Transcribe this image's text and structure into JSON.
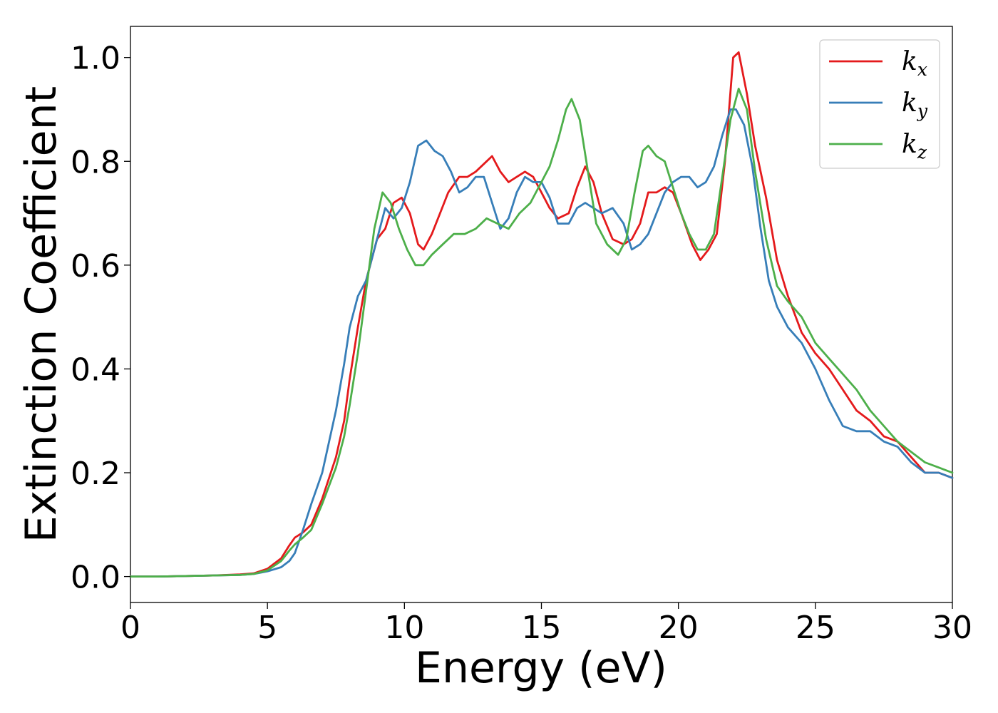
{
  "chart_data": {
    "type": "line",
    "xlabel": "Energy (eV)",
    "ylabel": "Extinction Coefficient",
    "xlim": [
      0,
      30
    ],
    "ylim": [
      -0.05,
      1.06
    ],
    "xticks": [
      0,
      5,
      10,
      15,
      20,
      25,
      30
    ],
    "xtick_labels": [
      "0",
      "5",
      "10",
      "15",
      "20",
      "25",
      "30"
    ],
    "yticks": [
      0.0,
      0.2,
      0.4,
      0.6,
      0.8,
      1.0
    ],
    "ytick_labels": [
      "0.0",
      "0.2",
      "0.4",
      "0.6",
      "0.8",
      "1.0"
    ],
    "grid": false,
    "legend_position": "top-right",
    "series": [
      {
        "name": "k_x",
        "label_main": "k",
        "label_sub": "x",
        "color": "#e41a1c",
        "x": [
          0,
          1,
          2,
          3,
          4,
          4.5,
          5,
          5.5,
          5.8,
          6,
          6.3,
          6.6,
          7,
          7.5,
          7.8,
          8,
          8.3,
          8.6,
          9,
          9.3,
          9.6,
          9.9,
          10.2,
          10.5,
          10.7,
          11,
          11.3,
          11.6,
          12,
          12.3,
          12.6,
          13,
          13.2,
          13.5,
          13.8,
          14.1,
          14.4,
          14.7,
          15,
          15.3,
          15.6,
          16,
          16.3,
          16.6,
          16.9,
          17.2,
          17.6,
          18,
          18.3,
          18.6,
          18.9,
          19.2,
          19.5,
          19.8,
          20.1,
          20.5,
          20.8,
          21.1,
          21.4,
          21.7,
          22,
          22.2,
          22.5,
          22.8,
          23.2,
          23.6,
          24,
          24.5,
          25,
          25.5,
          26,
          26.5,
          27,
          27.5,
          28,
          28.5,
          29,
          29.5,
          30
        ],
        "y": [
          0.0,
          0.0,
          0.001,
          0.002,
          0.004,
          0.006,
          0.015,
          0.035,
          0.06,
          0.075,
          0.085,
          0.1,
          0.15,
          0.23,
          0.3,
          0.38,
          0.48,
          0.57,
          0.65,
          0.67,
          0.72,
          0.73,
          0.7,
          0.64,
          0.63,
          0.66,
          0.7,
          0.74,
          0.77,
          0.77,
          0.78,
          0.8,
          0.81,
          0.78,
          0.76,
          0.77,
          0.78,
          0.77,
          0.74,
          0.71,
          0.69,
          0.7,
          0.75,
          0.79,
          0.76,
          0.7,
          0.65,
          0.64,
          0.65,
          0.68,
          0.74,
          0.74,
          0.75,
          0.74,
          0.7,
          0.64,
          0.61,
          0.63,
          0.66,
          0.8,
          1.0,
          1.01,
          0.93,
          0.83,
          0.73,
          0.61,
          0.54,
          0.47,
          0.43,
          0.4,
          0.36,
          0.32,
          0.3,
          0.27,
          0.26,
          0.23,
          0.2,
          0.2,
          0.19
        ]
      },
      {
        "name": "k_y",
        "label_main": "k",
        "label_sub": "y",
        "color": "#377eb8",
        "x": [
          0,
          1,
          2,
          3,
          4,
          4.5,
          5,
          5.5,
          5.8,
          6,
          6.3,
          6.6,
          7,
          7.5,
          7.8,
          8,
          8.3,
          8.6,
          9,
          9.3,
          9.6,
          9.9,
          10.2,
          10.5,
          10.8,
          11.1,
          11.4,
          11.7,
          12,
          12.3,
          12.6,
          12.9,
          13.2,
          13.5,
          13.8,
          14.1,
          14.4,
          14.7,
          15,
          15.3,
          15.6,
          16,
          16.3,
          16.6,
          16.9,
          17.2,
          17.6,
          18,
          18.3,
          18.6,
          18.9,
          19.2,
          19.5,
          19.8,
          20.1,
          20.4,
          20.7,
          21,
          21.3,
          21.6,
          21.9,
          22.1,
          22.4,
          22.7,
          23,
          23.3,
          23.6,
          24,
          24.5,
          25,
          25.5,
          26,
          26.5,
          27,
          27.5,
          28,
          28.5,
          29,
          29.5,
          30
        ],
        "y": [
          0.0,
          0.0,
          0.001,
          0.002,
          0.003,
          0.005,
          0.01,
          0.018,
          0.03,
          0.045,
          0.09,
          0.14,
          0.2,
          0.32,
          0.41,
          0.48,
          0.54,
          0.57,
          0.65,
          0.71,
          0.69,
          0.71,
          0.76,
          0.83,
          0.84,
          0.82,
          0.81,
          0.78,
          0.74,
          0.75,
          0.77,
          0.77,
          0.72,
          0.67,
          0.69,
          0.74,
          0.77,
          0.76,
          0.76,
          0.73,
          0.68,
          0.68,
          0.71,
          0.72,
          0.71,
          0.7,
          0.71,
          0.68,
          0.63,
          0.64,
          0.66,
          0.7,
          0.74,
          0.76,
          0.77,
          0.77,
          0.75,
          0.76,
          0.79,
          0.85,
          0.9,
          0.9,
          0.87,
          0.79,
          0.67,
          0.57,
          0.52,
          0.48,
          0.45,
          0.4,
          0.34,
          0.29,
          0.28,
          0.28,
          0.26,
          0.25,
          0.22,
          0.2,
          0.2,
          0.19
        ]
      },
      {
        "name": "k_z",
        "label_main": "k",
        "label_sub": "z",
        "color": "#4daf4a",
        "x": [
          0,
          1,
          2,
          3,
          4,
          4.5,
          5,
          5.5,
          5.8,
          6,
          6.3,
          6.6,
          7,
          7.5,
          7.8,
          8,
          8.3,
          8.6,
          8.9,
          9.2,
          9.5,
          9.8,
          10.1,
          10.4,
          10.7,
          11,
          11.4,
          11.8,
          12.2,
          12.6,
          13,
          13.4,
          13.8,
          14.2,
          14.6,
          15,
          15.3,
          15.6,
          15.9,
          16.1,
          16.4,
          16.7,
          17,
          17.4,
          17.8,
          18.1,
          18.4,
          18.7,
          18.9,
          19.2,
          19.5,
          19.8,
          20.1,
          20.4,
          20.7,
          21,
          21.3,
          21.6,
          21.9,
          22.2,
          22.5,
          22.8,
          23.2,
          23.6,
          24,
          24.5,
          25,
          25.5,
          26,
          26.5,
          27,
          27.5,
          28,
          28.5,
          29,
          29.5,
          30
        ],
        "y": [
          0.0,
          0.0,
          0.001,
          0.002,
          0.003,
          0.005,
          0.012,
          0.03,
          0.05,
          0.062,
          0.075,
          0.09,
          0.14,
          0.21,
          0.27,
          0.33,
          0.43,
          0.55,
          0.67,
          0.74,
          0.72,
          0.67,
          0.63,
          0.6,
          0.6,
          0.62,
          0.64,
          0.66,
          0.66,
          0.67,
          0.69,
          0.68,
          0.67,
          0.7,
          0.72,
          0.76,
          0.79,
          0.84,
          0.9,
          0.92,
          0.88,
          0.78,
          0.68,
          0.64,
          0.62,
          0.65,
          0.74,
          0.82,
          0.83,
          0.81,
          0.8,
          0.75,
          0.7,
          0.66,
          0.63,
          0.63,
          0.66,
          0.77,
          0.88,
          0.94,
          0.9,
          0.78,
          0.65,
          0.56,
          0.53,
          0.5,
          0.45,
          0.42,
          0.39,
          0.36,
          0.32,
          0.29,
          0.26,
          0.24,
          0.22,
          0.21,
          0.2
        ]
      }
    ]
  }
}
